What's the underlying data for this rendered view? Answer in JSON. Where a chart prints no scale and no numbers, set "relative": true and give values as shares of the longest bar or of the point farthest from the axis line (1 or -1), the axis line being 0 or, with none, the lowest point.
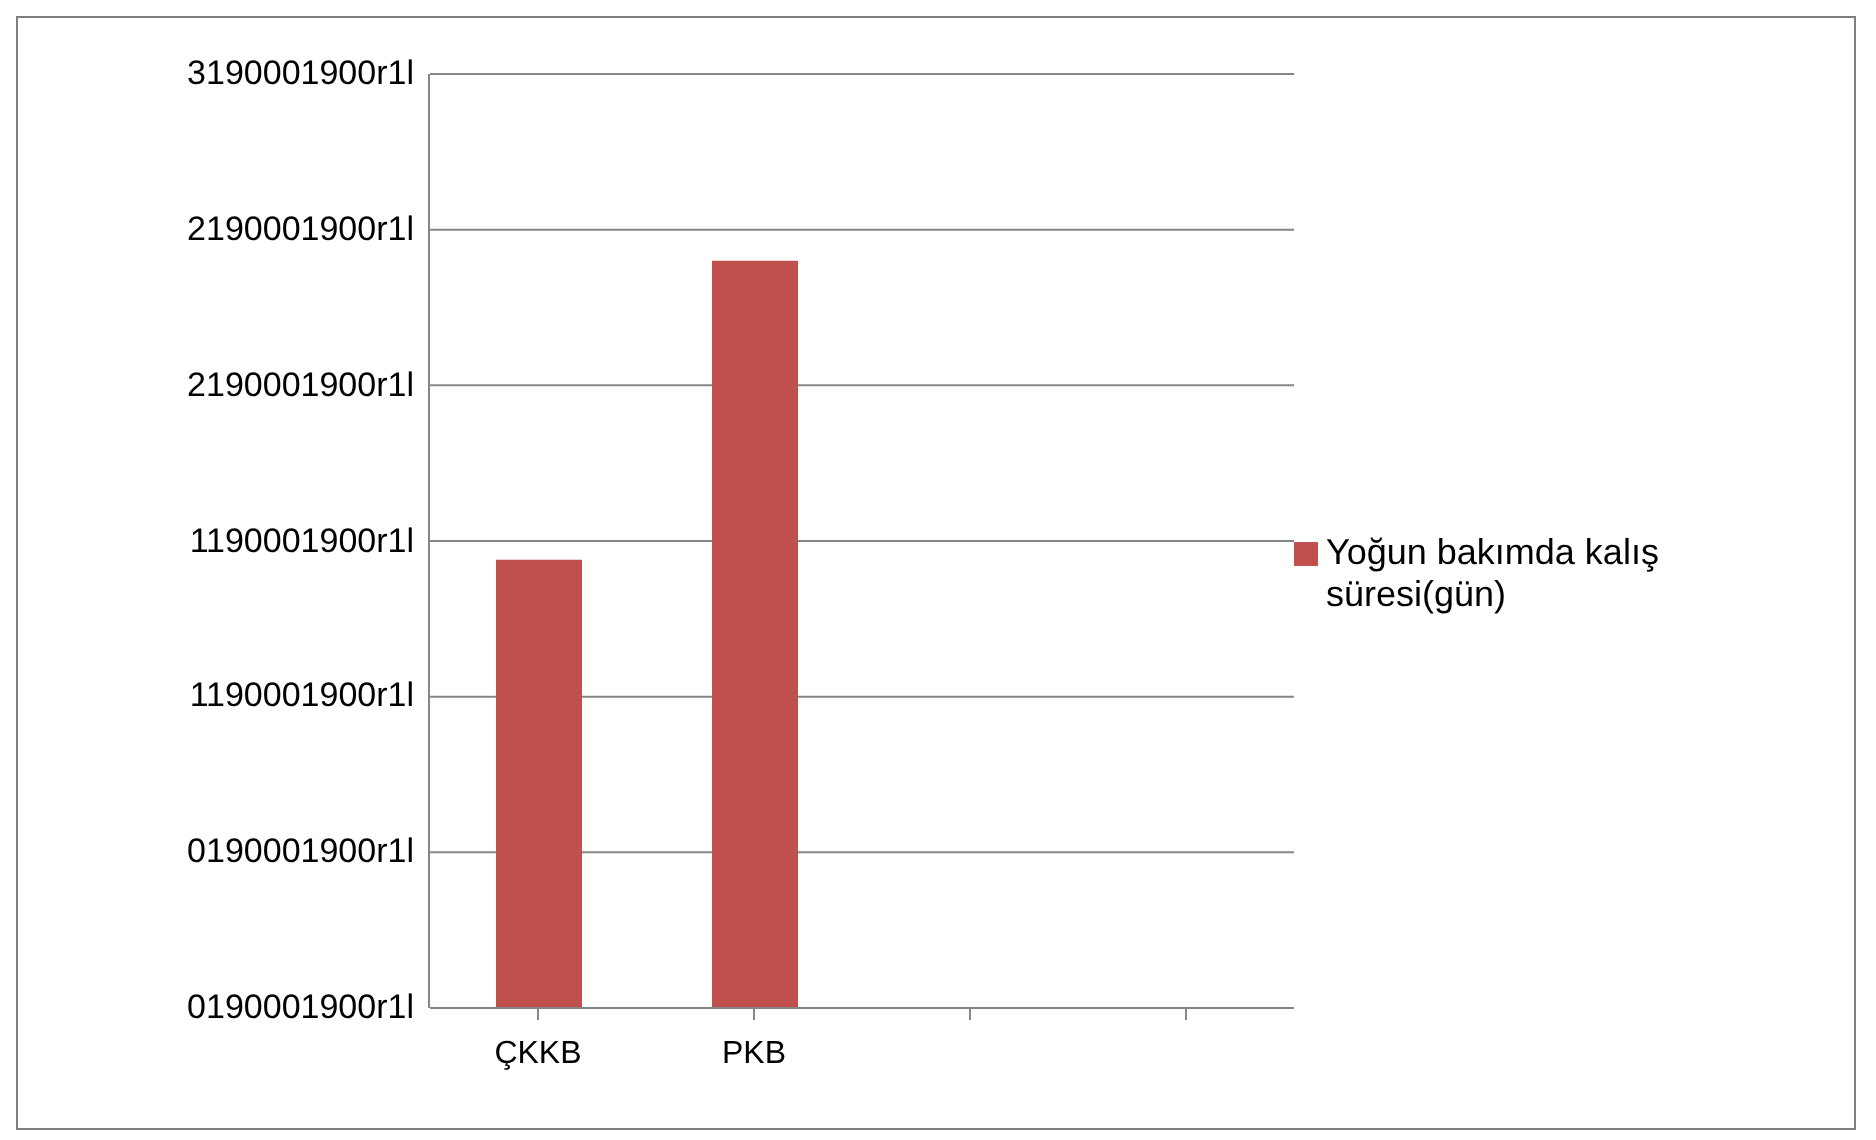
{
  "chart_data": {
    "type": "bar",
    "categories": [
      "ÇKKB",
      "PKB",
      null,
      null
    ],
    "series": [
      {
        "name": "Yoğun bakımda kalış süresi(gün)",
        "color": "#c0504d",
        "values": [
          0.6,
          1,
          null,
          null
        ]
      }
    ],
    "relative": true,
    "annotations": [
      "3190001900r1l",
      "2190001900r1l",
      "2190001900r1l",
      "1190001900r1l",
      "1190001900r1l",
      "0190001900r1l",
      "0190001900r1l"
    ],
    "grid": "y",
    "legend": "right"
  }
}
